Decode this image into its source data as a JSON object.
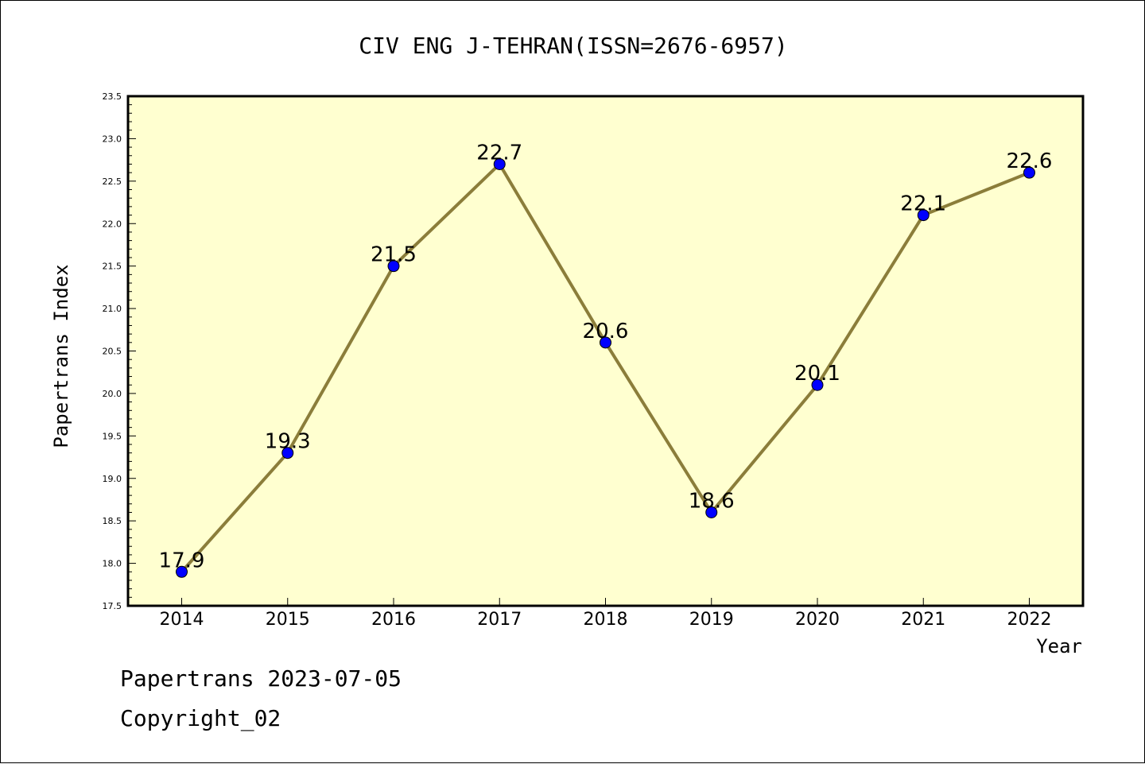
{
  "chart_data": {
    "type": "line",
    "title": "CIV ENG J-TEHRAN(ISSN=2676-6957)",
    "xlabel": "Year",
    "ylabel": "Papertrans Index",
    "categories": [
      "2014",
      "2015",
      "2016",
      "2017",
      "2018",
      "2019",
      "2020",
      "2021",
      "2022"
    ],
    "series": [
      {
        "values": [
          17.9,
          19.3,
          21.5,
          22.7,
          20.6,
          18.6,
          20.1,
          22.1,
          22.6
        ]
      }
    ],
    "data_labels": [
      "17.9",
      "19.3",
      "21.5",
      "22.7",
      "20.6",
      "18.6",
      "20.1",
      "22.1",
      "22.6"
    ],
    "ylim": [
      17.5,
      23.5
    ],
    "yticks": [
      "17.5",
      "18.0",
      "18.5",
      "19.0",
      "19.5",
      "20.0",
      "20.5",
      "21.0",
      "21.5",
      "22.0",
      "22.5",
      "23.0",
      "23.5"
    ],
    "grid": false,
    "colors": {
      "plot_background": "#ffffd0",
      "line": "#8b7d3a",
      "marker": "#0000ff"
    }
  },
  "footer": {
    "line1": "Papertrans 2023-07-05",
    "line2": "Copyright_02"
  }
}
